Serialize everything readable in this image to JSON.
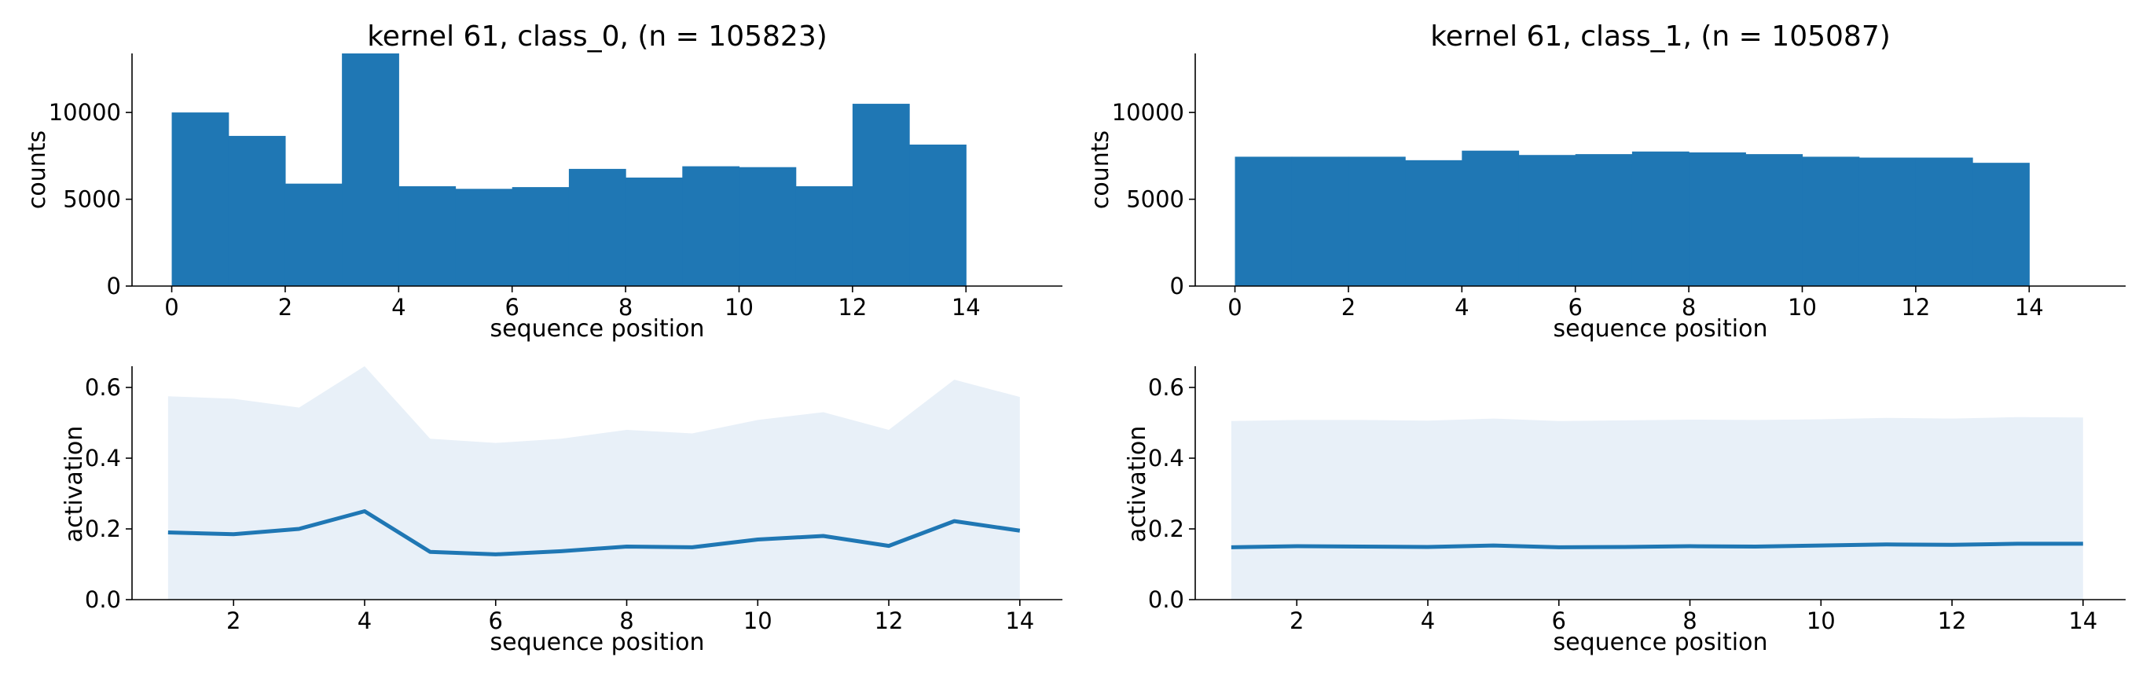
{
  "colors": {
    "bar": "#1f77b4",
    "line": "#1f77b4",
    "band": "#e8f0f8",
    "axis": "#000000"
  },
  "chart_data": [
    {
      "type": "bar",
      "title": "kernel 61, class_0, (n = 105823)",
      "xlabel": "sequence position",
      "ylabel": "counts",
      "xlim": [
        -0.7,
        15.7
      ],
      "ylim": [
        0,
        13400
      ],
      "xticks": [
        0,
        2,
        4,
        6,
        8,
        10,
        12,
        14
      ],
      "yticks": [
        0,
        5000,
        10000
      ],
      "bin_edges": [
        0,
        1,
        2,
        3,
        4,
        5,
        6,
        7,
        8,
        9,
        10,
        11,
        12,
        13,
        14
      ],
      "values": [
        10000,
        8650,
        5900,
        13400,
        5750,
        5600,
        5700,
        6750,
        6250,
        6900,
        6850,
        5750,
        10500,
        8150
      ]
    },
    {
      "type": "bar",
      "title": "kernel 61, class_1, (n = 105087)",
      "xlabel": "sequence position",
      "ylabel": "counts",
      "xlim": [
        -0.7,
        15.7
      ],
      "ylim": [
        0,
        13400
      ],
      "xticks": [
        0,
        2,
        4,
        6,
        8,
        10,
        12,
        14
      ],
      "yticks": [
        0,
        5000,
        10000
      ],
      "bin_edges": [
        0,
        1,
        2,
        3,
        4,
        5,
        6,
        7,
        8,
        9,
        10,
        11,
        12,
        13,
        14
      ],
      "values": [
        7450,
        7450,
        7450,
        7250,
        7800,
        7550,
        7600,
        7750,
        7700,
        7600,
        7450,
        7400,
        7400,
        7100
      ]
    },
    {
      "type": "area",
      "xlabel": "sequence position",
      "ylabel": "activation",
      "xlim": [
        0.45,
        14.65
      ],
      "ylim": [
        0,
        0.66
      ],
      "xticks": [
        2,
        4,
        6,
        8,
        10,
        12,
        14
      ],
      "yticks": [
        0.0,
        0.2,
        0.4,
        0.6
      ],
      "x": [
        1,
        2,
        3,
        4,
        5,
        6,
        7,
        8,
        9,
        10,
        11,
        12,
        13,
        14
      ],
      "mean": [
        0.19,
        0.185,
        0.2,
        0.25,
        0.135,
        0.128,
        0.137,
        0.15,
        0.148,
        0.17,
        0.18,
        0.152,
        0.222,
        0.195
      ],
      "upper": [
        0.575,
        0.568,
        0.543,
        0.66,
        0.455,
        0.443,
        0.455,
        0.48,
        0.47,
        0.508,
        0.53,
        0.48,
        0.622,
        0.573
      ]
    },
    {
      "type": "area",
      "xlabel": "sequence position",
      "ylabel": "activation",
      "xlim": [
        0.45,
        14.65
      ],
      "ylim": [
        0,
        0.66
      ],
      "xticks": [
        2,
        4,
        6,
        8,
        10,
        12,
        14
      ],
      "yticks": [
        0.0,
        0.2,
        0.4,
        0.6
      ],
      "x": [
        1,
        2,
        3,
        4,
        5,
        6,
        7,
        8,
        9,
        10,
        11,
        12,
        13,
        14
      ],
      "mean": [
        0.148,
        0.151,
        0.15,
        0.149,
        0.153,
        0.148,
        0.149,
        0.151,
        0.15,
        0.153,
        0.156,
        0.155,
        0.158,
        0.158
      ],
      "upper": [
        0.505,
        0.508,
        0.508,
        0.506,
        0.512,
        0.505,
        0.507,
        0.509,
        0.508,
        0.51,
        0.514,
        0.512,
        0.516,
        0.515
      ]
    }
  ]
}
